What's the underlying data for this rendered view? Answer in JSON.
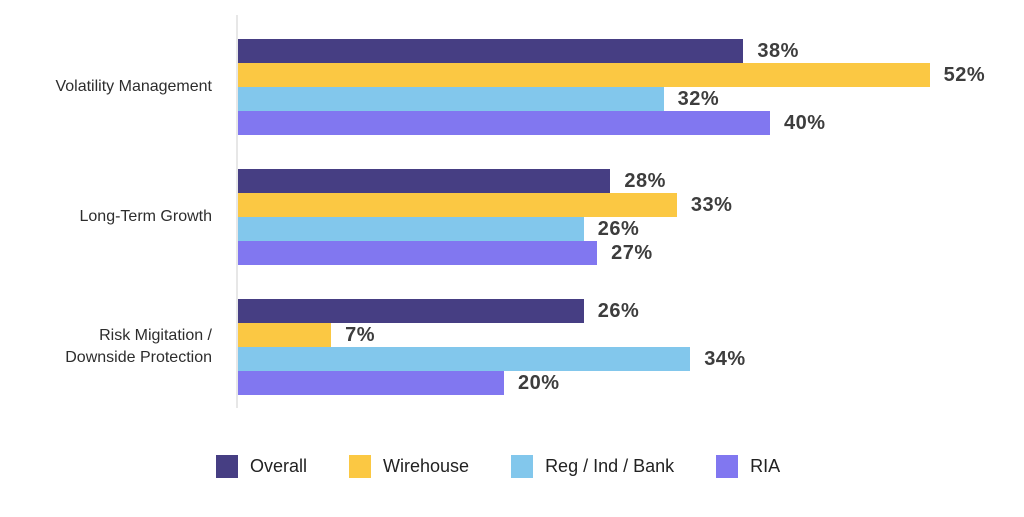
{
  "chart_data": {
    "type": "bar",
    "orientation": "horizontal",
    "title": "",
    "xlabel": "",
    "ylabel": "",
    "grid": false,
    "legend_position": "bottom",
    "value_format": "percent",
    "xlim": [
      0,
      52
    ],
    "categories": [
      "Volatility Management",
      "Long-Term Growth",
      "Risk Migitation / Downside Protection"
    ],
    "category_label_lines": [
      [
        "Volatility Management"
      ],
      [
        "Long-Term Growth"
      ],
      [
        "Risk Migitation /",
        "Downside Protection"
      ]
    ],
    "series": [
      {
        "name": "Overall",
        "color": "#463E83",
        "values": [
          38,
          28,
          26
        ],
        "labels": [
          "38%",
          "28%",
          "26%"
        ]
      },
      {
        "name": "Wirehouse",
        "color": "#FBC843",
        "values": [
          52,
          33,
          7
        ],
        "labels": [
          "52%",
          "33%",
          "7%"
        ]
      },
      {
        "name": "Reg / Ind / Bank",
        "color": "#82C7EC",
        "values": [
          32,
          26,
          34
        ],
        "labels": [
          "32%",
          "26%",
          "34%"
        ]
      },
      {
        "name": "RIA",
        "color": "#8177F0",
        "values": [
          40,
          27,
          20
        ],
        "labels": [
          "40%",
          "27%",
          "20%"
        ]
      }
    ]
  },
  "layout_colors": {
    "axis_line": "#e7e7e7",
    "value_text": "#3d3d3d",
    "category_text": "#2d2d2d",
    "legend_text": "#222222",
    "background": "#ffffff"
  }
}
